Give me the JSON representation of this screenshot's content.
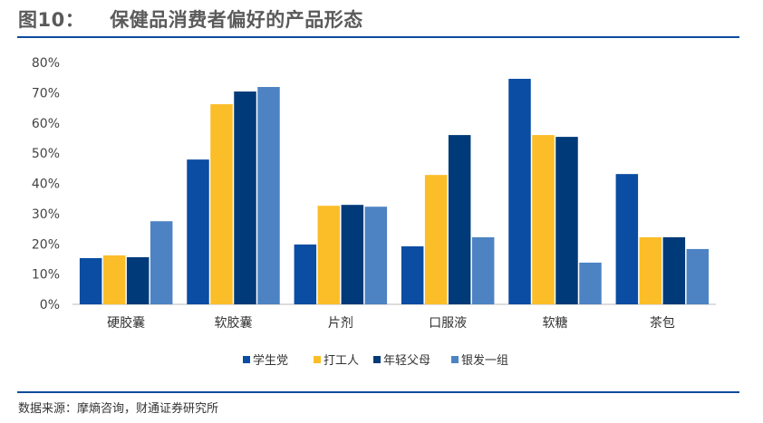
{
  "header": {
    "figure_no": "图10：",
    "title": "保健品消费者偏好的产品形态"
  },
  "source": "数据来源：摩熵咨询，财通证券研究所",
  "chart_data": {
    "type": "bar",
    "title": "保健品消费者偏好的产品形态",
    "categories": [
      "硬胶囊",
      "软胶囊",
      "片剂",
      "口服液",
      "软糖",
      "茶包"
    ],
    "series": [
      {
        "name": "学生党",
        "color": "#0a4da2",
        "values": [
          15.3,
          47.9,
          19.8,
          19.2,
          74.6,
          43.1
        ]
      },
      {
        "name": "打工人",
        "color": "#fbbd28",
        "values": [
          16.2,
          66.2,
          32.6,
          42.8,
          56.0,
          22.2
        ]
      },
      {
        "name": "年轻父母",
        "color": "#003a78",
        "values": [
          15.6,
          70.4,
          32.9,
          56.0,
          55.4,
          22.2
        ]
      },
      {
        "name": "银发一组",
        "color": "#4d83c3",
        "values": [
          27.5,
          71.9,
          32.3,
          22.2,
          13.8,
          18.3
        ]
      }
    ],
    "yticks": [
      "0%",
      "10%",
      "20%",
      "30%",
      "40%",
      "50%",
      "60%",
      "70%",
      "80%"
    ],
    "ylim": [
      0,
      80
    ],
    "xlabel": "",
    "ylabel": "",
    "grid": false,
    "legend": "bottom"
  }
}
